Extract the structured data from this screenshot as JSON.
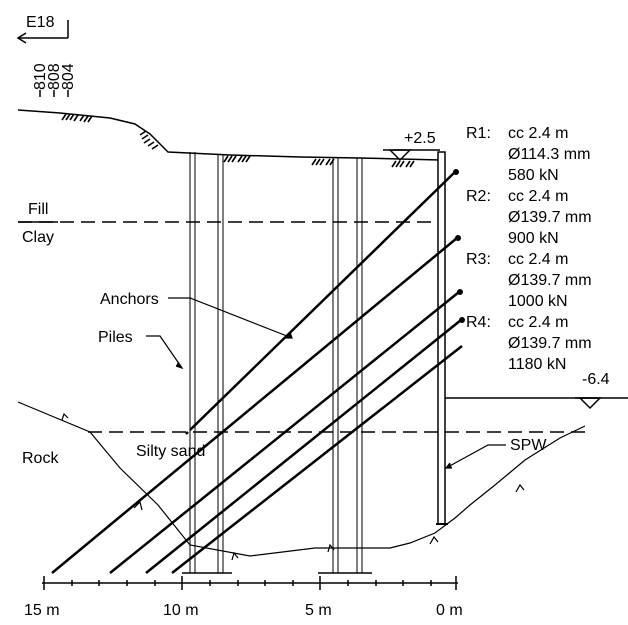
{
  "direction_label": "E18",
  "reference_labels": [
    "810",
    "808",
    "804"
  ],
  "level_top": "+2.5",
  "level_bottom": "-6.4",
  "layers": {
    "fill": "Fill",
    "clay": "Clay",
    "silty_sand": "Silty sand",
    "rock": "Rock"
  },
  "callouts": {
    "anchors": "Anchors",
    "piles": "Piles",
    "spw": "SPW"
  },
  "anchor_rows": [
    {
      "id": "R1:",
      "spacing": "cc 2.4 m",
      "diameter": "Ø114.3 mm",
      "load": "580 kN"
    },
    {
      "id": "R2:",
      "spacing": "cc 2.4 m",
      "diameter": "Ø139.7 mm",
      "load": "900 kN"
    },
    {
      "id": "R3:",
      "spacing": "cc 2.4 m",
      "diameter": "Ø139.7 mm",
      "load": "1000 kN"
    },
    {
      "id": "R4:",
      "spacing": "cc 2.4 m",
      "diameter": "Ø139.7 mm",
      "load": "1180 kN"
    }
  ],
  "scale_labels": [
    "15 m",
    "10 m",
    "5 m",
    "0 m"
  ]
}
